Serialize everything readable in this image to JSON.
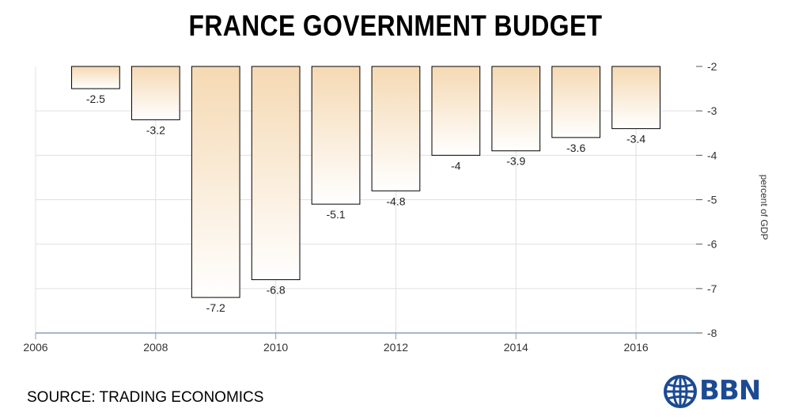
{
  "title": "FRANCE GOVERNMENT BUDGET",
  "source": "SOURCE: TRADING ECONOMICS",
  "logo_text": "BBN",
  "colors": {
    "bar_top": "#f5d9b3",
    "bar_bottom": "#ffffff",
    "bar_stroke": "#000000",
    "grid": "#e0e0e0",
    "logo": "#1c4a93"
  },
  "chart_data": {
    "type": "bar",
    "title": "FRANCE GOVERNMENT BUDGET",
    "ylabel": "percent of GDP",
    "xlabel": "",
    "x": [
      2007,
      2008,
      2009,
      2010,
      2011,
      2012,
      2013,
      2014,
      2015,
      2016
    ],
    "values": [
      -2.5,
      -3.2,
      -7.2,
      -6.8,
      -5.1,
      -4.8,
      -4,
      -3.9,
      -3.6,
      -3.4
    ],
    "value_labels": [
      "-2.5",
      "-3.2",
      "-7.2",
      "-6.8",
      "-5.1",
      "-4.8",
      "-4",
      "-3.9",
      "-3.6",
      "-3.4"
    ],
    "ylim": [
      -8,
      -2
    ],
    "y_ticks": [
      -2,
      -3,
      -4,
      -5,
      -6,
      -7,
      -8
    ],
    "y_tick_labels": [
      "-2",
      "-3",
      "-4",
      "-5",
      "-6",
      "-7",
      "-8"
    ],
    "x_ticks": [
      2006,
      2008,
      2010,
      2012,
      2014,
      2016
    ],
    "x_tick_labels": [
      "2006",
      "2008",
      "2010",
      "2012",
      "2014",
      "2016"
    ],
    "grid": true,
    "y_axis_side": "right",
    "bar_baseline": -2
  }
}
